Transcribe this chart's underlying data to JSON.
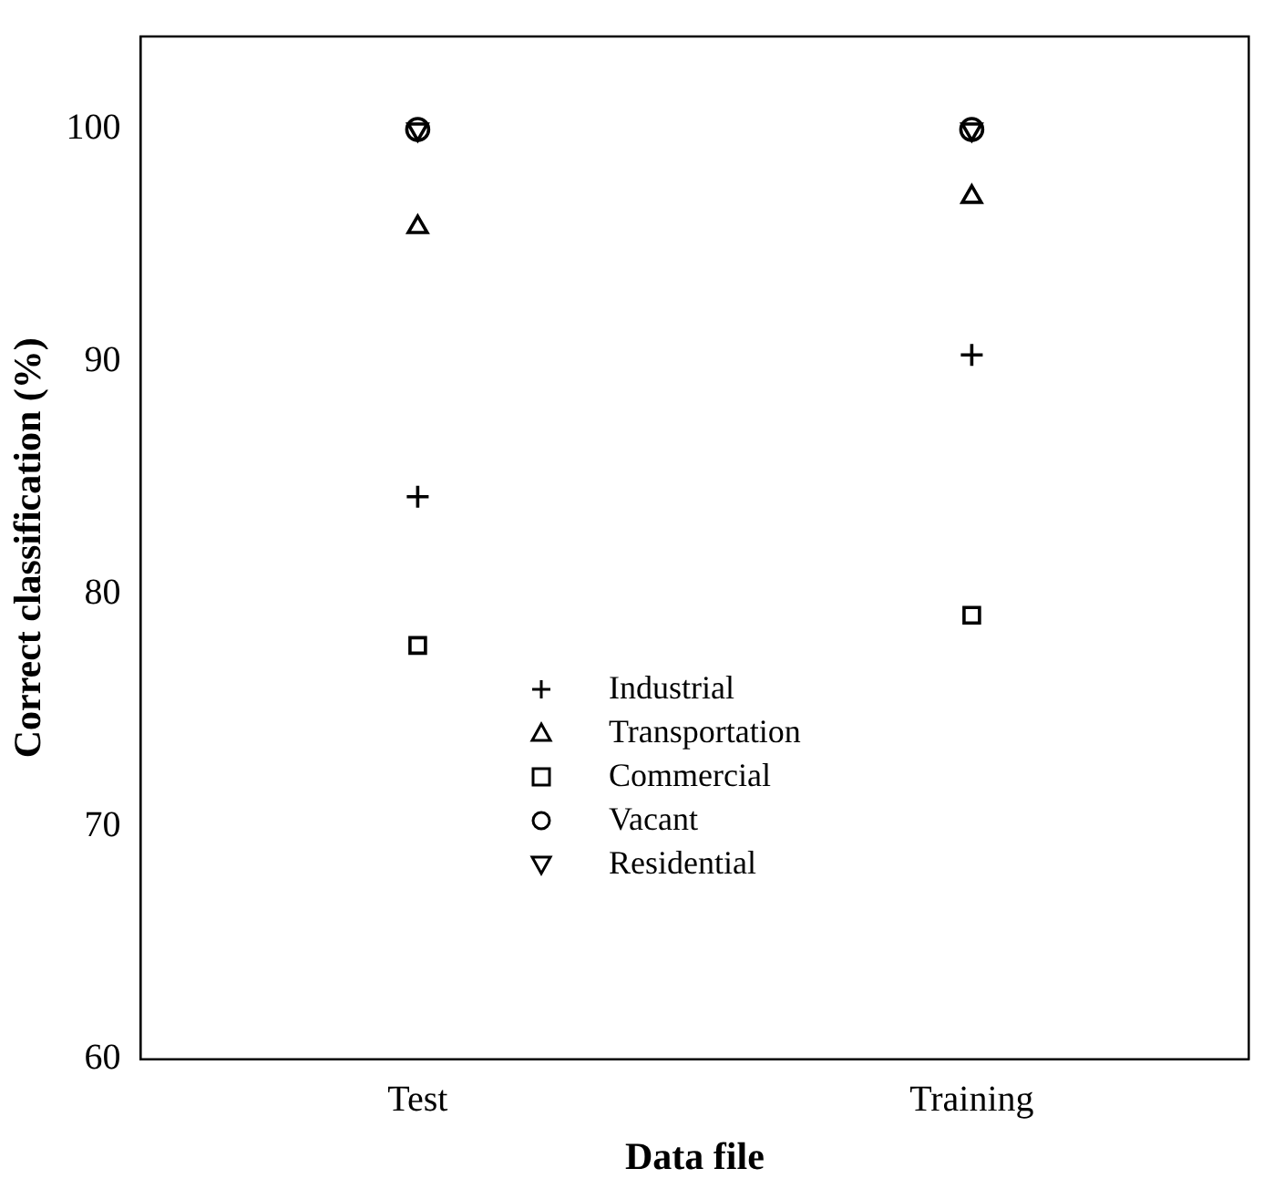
{
  "chart_data": {
    "type": "scatter",
    "xlabel": "Data file",
    "ylabel": "Correct classification (%)",
    "categories": [
      "Test",
      "Training"
    ],
    "ylim": [
      60,
      104
    ],
    "yticks": [
      60,
      70,
      80,
      90,
      100
    ],
    "grid": false,
    "legend": "bottom",
    "series": [
      {
        "name": "Industrial",
        "color": "#000000",
        "marker": "cross",
        "values": [
          84.2,
          90.3
        ]
      },
      {
        "name": "Transportation",
        "color": "#000000",
        "marker": "triangle",
        "values": [
          95.8,
          97.1
        ]
      },
      {
        "name": "Commercial",
        "color": "#000000",
        "marker": "square",
        "values": [
          77.8,
          79.1
        ]
      },
      {
        "name": "Vacant",
        "color": "#000000",
        "marker": "circle",
        "values": [
          100,
          100
        ]
      },
      {
        "name": "Residential",
        "color": "#000000",
        "marker": "triangle-down",
        "values": [
          100,
          100
        ]
      }
    ]
  }
}
